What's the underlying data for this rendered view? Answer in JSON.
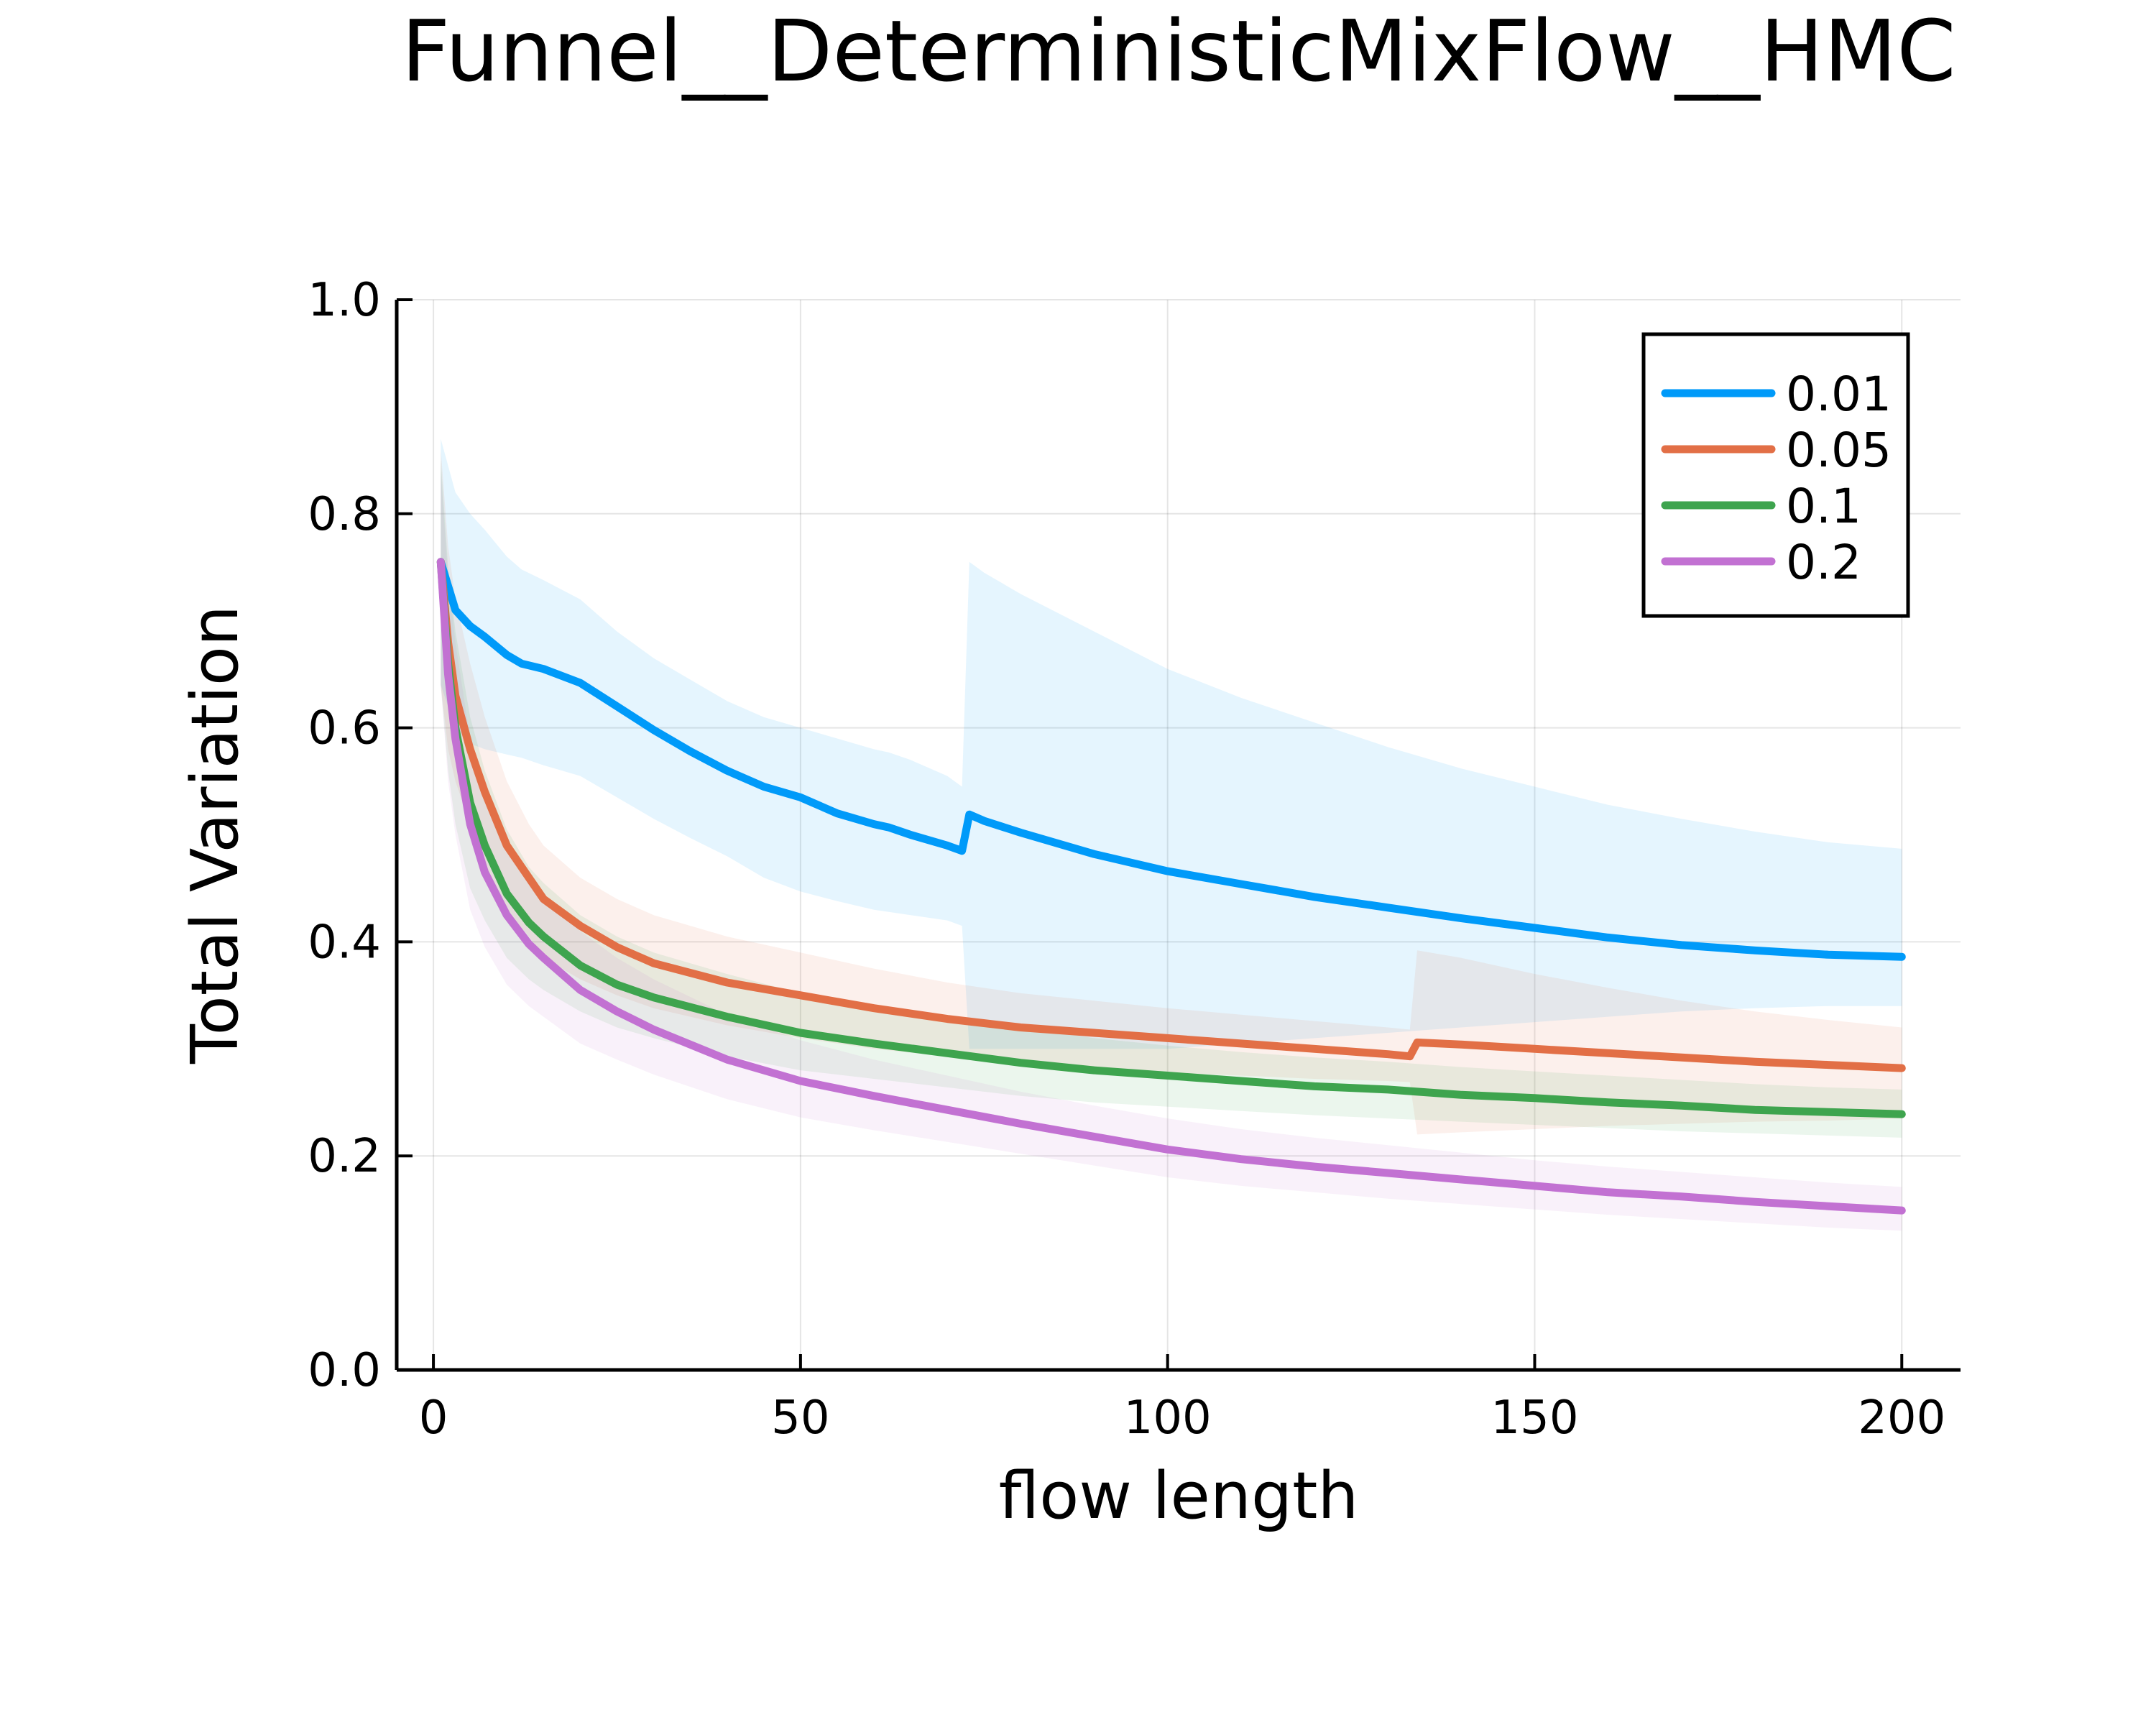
{
  "chart_data": {
    "type": "line",
    "title": "Funnel__DeterministicMixFlow__HMC",
    "xlabel": "flow length",
    "ylabel": "Total Variation",
    "xlim": [
      -5,
      208
    ],
    "ylim": [
      0,
      1
    ],
    "xticks": [
      0,
      50,
      100,
      150,
      200
    ],
    "yticks": [
      0.0,
      0.2,
      0.4,
      0.6,
      0.8,
      1.0
    ],
    "xtick_labels": [
      "0",
      "50",
      "100",
      "150",
      "200"
    ],
    "ytick_labels": [
      "0.0",
      "0.2",
      "0.4",
      "0.6",
      "0.8",
      "1.0"
    ],
    "grid": true,
    "legend_position": "top-right",
    "series": [
      {
        "name": "0.01",
        "color": "#009af9",
        "x": [
          1,
          3,
          5,
          7,
          10,
          12,
          15,
          20,
          25,
          30,
          35,
          40,
          45,
          50,
          55,
          60,
          62,
          65,
          70,
          72,
          73,
          75,
          80,
          90,
          100,
          110,
          120,
          130,
          140,
          150,
          160,
          170,
          180,
          190,
          200
        ],
        "y": [
          0.755,
          0.71,
          0.695,
          0.685,
          0.668,
          0.66,
          0.655,
          0.642,
          0.62,
          0.598,
          0.578,
          0.56,
          0.545,
          0.535,
          0.52,
          0.51,
          0.507,
          0.5,
          0.49,
          0.485,
          0.519,
          0.513,
          0.502,
          0.482,
          0.466,
          0.454,
          0.442,
          0.432,
          0.422,
          0.413,
          0.404,
          0.397,
          0.392,
          0.388,
          0.386
        ],
        "band_upper": [
          0.87,
          0.82,
          0.8,
          0.785,
          0.76,
          0.748,
          0.738,
          0.72,
          0.69,
          0.665,
          0.645,
          0.625,
          0.61,
          0.6,
          0.59,
          0.58,
          0.577,
          0.57,
          0.555,
          0.545,
          0.755,
          0.745,
          0.725,
          0.69,
          0.655,
          0.628,
          0.605,
          0.582,
          0.562,
          0.545,
          0.528,
          0.515,
          0.503,
          0.493,
          0.487
        ],
        "band_lower": [
          0.64,
          0.6,
          0.585,
          0.58,
          0.575,
          0.572,
          0.565,
          0.555,
          0.535,
          0.515,
          0.497,
          0.48,
          0.46,
          0.447,
          0.438,
          0.43,
          0.428,
          0.425,
          0.42,
          0.415,
          0.3,
          0.3,
          0.3,
          0.3,
          0.3,
          0.305,
          0.31,
          0.315,
          0.32,
          0.325,
          0.33,
          0.335,
          0.338,
          0.34,
          0.34
        ]
      },
      {
        "name": "0.05",
        "color": "#e26f46",
        "x": [
          1,
          2,
          3,
          5,
          7,
          10,
          13,
          15,
          20,
          25,
          30,
          40,
          50,
          60,
          70,
          80,
          90,
          100,
          110,
          120,
          130,
          133,
          134,
          140,
          150,
          160,
          170,
          180,
          190,
          200
        ],
        "y": [
          0.755,
          0.68,
          0.63,
          0.58,
          0.54,
          0.49,
          0.46,
          0.44,
          0.415,
          0.395,
          0.38,
          0.362,
          0.35,
          0.338,
          0.328,
          0.32,
          0.315,
          0.31,
          0.305,
          0.3,
          0.295,
          0.293,
          0.306,
          0.304,
          0.3,
          0.296,
          0.292,
          0.288,
          0.285,
          0.282
        ],
        "band_upper": [
          0.86,
          0.77,
          0.72,
          0.66,
          0.61,
          0.55,
          0.51,
          0.49,
          0.46,
          0.44,
          0.425,
          0.405,
          0.39,
          0.375,
          0.362,
          0.352,
          0.345,
          0.338,
          0.332,
          0.326,
          0.32,
          0.318,
          0.392,
          0.385,
          0.37,
          0.357,
          0.345,
          0.335,
          0.327,
          0.32
        ],
        "band_lower": [
          0.64,
          0.58,
          0.55,
          0.51,
          0.47,
          0.43,
          0.405,
          0.385,
          0.365,
          0.35,
          0.338,
          0.322,
          0.31,
          0.3,
          0.293,
          0.287,
          0.282,
          0.278,
          0.275,
          0.272,
          0.27,
          0.269,
          0.22,
          0.222,
          0.225,
          0.228,
          0.23,
          0.232,
          0.233,
          0.235
        ]
      },
      {
        "name": "0.1",
        "color": "#3ea44e",
        "x": [
          1,
          2,
          3,
          5,
          7,
          10,
          13,
          15,
          20,
          25,
          30,
          40,
          50,
          60,
          70,
          80,
          90,
          100,
          110,
          120,
          130,
          140,
          150,
          160,
          170,
          180,
          190,
          200
        ],
        "y": [
          0.755,
          0.66,
          0.6,
          0.53,
          0.49,
          0.445,
          0.418,
          0.405,
          0.378,
          0.36,
          0.348,
          0.33,
          0.315,
          0.305,
          0.296,
          0.287,
          0.28,
          0.275,
          0.27,
          0.265,
          0.262,
          0.257,
          0.254,
          0.25,
          0.247,
          0.243,
          0.241,
          0.239
        ],
        "band_upper": [
          0.85,
          0.75,
          0.69,
          0.61,
          0.56,
          0.505,
          0.47,
          0.455,
          0.425,
          0.405,
          0.39,
          0.37,
          0.352,
          0.34,
          0.33,
          0.32,
          0.31,
          0.303,
          0.297,
          0.292,
          0.288,
          0.283,
          0.279,
          0.275,
          0.271,
          0.267,
          0.264,
          0.262
        ],
        "band_lower": [
          0.64,
          0.56,
          0.51,
          0.45,
          0.42,
          0.385,
          0.365,
          0.355,
          0.335,
          0.32,
          0.31,
          0.293,
          0.28,
          0.272,
          0.264,
          0.256,
          0.25,
          0.246,
          0.242,
          0.238,
          0.235,
          0.232,
          0.229,
          0.226,
          0.223,
          0.221,
          0.219,
          0.217
        ]
      },
      {
        "name": "0.2",
        "color": "#c271d2",
        "x": [
          1,
          2,
          3,
          5,
          7,
          10,
          13,
          15,
          20,
          25,
          30,
          40,
          50,
          60,
          70,
          80,
          90,
          100,
          110,
          120,
          130,
          140,
          150,
          160,
          170,
          180,
          190,
          200
        ],
        "y": [
          0.755,
          0.65,
          0.59,
          0.51,
          0.465,
          0.425,
          0.398,
          0.385,
          0.355,
          0.335,
          0.318,
          0.29,
          0.27,
          0.256,
          0.243,
          0.23,
          0.218,
          0.206,
          0.197,
          0.19,
          0.184,
          0.178,
          0.172,
          0.166,
          0.162,
          0.157,
          0.153,
          0.149
        ],
        "band_upper": [
          0.84,
          0.74,
          0.68,
          0.59,
          0.54,
          0.49,
          0.46,
          0.445,
          0.41,
          0.385,
          0.365,
          0.332,
          0.308,
          0.29,
          0.275,
          0.26,
          0.247,
          0.235,
          0.225,
          0.217,
          0.21,
          0.203,
          0.196,
          0.19,
          0.185,
          0.18,
          0.175,
          0.171
        ],
        "band_lower": [
          0.64,
          0.55,
          0.5,
          0.43,
          0.395,
          0.36,
          0.34,
          0.33,
          0.305,
          0.29,
          0.276,
          0.253,
          0.236,
          0.224,
          0.213,
          0.202,
          0.191,
          0.18,
          0.172,
          0.166,
          0.16,
          0.155,
          0.15,
          0.145,
          0.141,
          0.137,
          0.133,
          0.13
        ]
      }
    ]
  }
}
